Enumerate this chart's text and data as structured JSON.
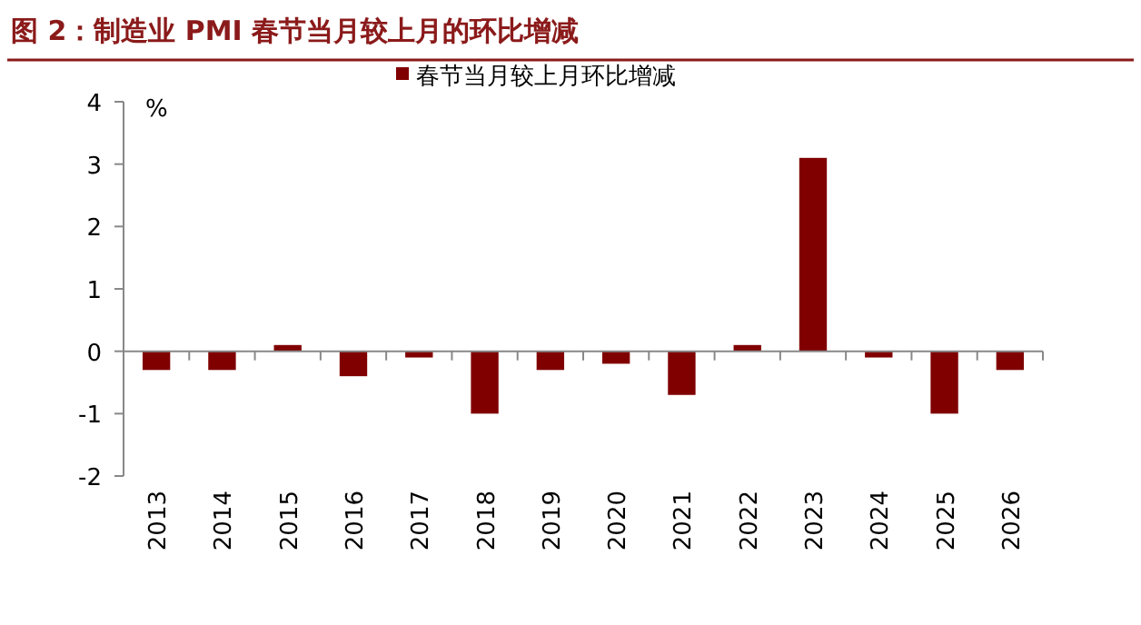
{
  "chart_data": {
    "type": "bar",
    "title": "图 2：制造业 PMI 春节当月较上月的环比增减",
    "ylabel": "%",
    "categories": [
      "2013",
      "2014",
      "2015",
      "2016",
      "2017",
      "2018",
      "2019",
      "2020",
      "2021",
      "2022",
      "2023",
      "2024",
      "2025",
      "2026"
    ],
    "series": [
      {
        "name": "春节当月较上月环比增减",
        "color": "#800000",
        "values": [
          -0.3,
          -0.3,
          0.1,
          -0.4,
          -0.1,
          -1.0,
          -0.3,
          -0.2,
          -0.7,
          0.1,
          3.1,
          -0.1,
          -1.0,
          -0.3
        ]
      }
    ],
    "ylim": [
      -2,
      4
    ],
    "yticks": [
      -2,
      -1,
      0,
      1,
      2,
      3,
      4
    ],
    "legend": "top"
  }
}
